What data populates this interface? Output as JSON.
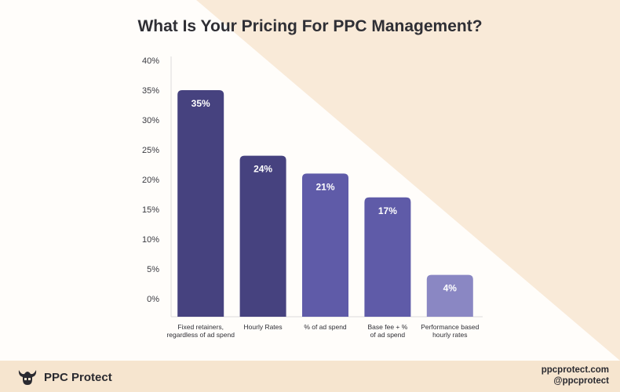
{
  "chart_data": {
    "type": "bar",
    "title": "What Is Your Pricing For PPC Management?",
    "categories": [
      [
        "Fixed retainers,",
        "regardless of ad spend"
      ],
      [
        "Hourly Rates"
      ],
      [
        "% of ad spend"
      ],
      [
        "Base fee + %",
        "of ad spend"
      ],
      [
        "Performance based",
        "hourly rates"
      ]
    ],
    "values": [
      35,
      24,
      21,
      17,
      4
    ],
    "value_labels": [
      "35%",
      "24%",
      "21%",
      "17%",
      "4%"
    ],
    "yticks": [
      "0%",
      "5%",
      "10%",
      "15%",
      "20%",
      "25%",
      "30%",
      "35%",
      "40%"
    ],
    "ylim": [
      0,
      40
    ],
    "xlabel": "",
    "ylabel": "",
    "grid": false,
    "bar_colors": [
      "#46427f",
      "#46427f",
      "#5f5ba8",
      "#5f5ba8",
      "#8a87c3"
    ]
  },
  "footer": {
    "brand": "PPC Protect",
    "website": "ppcprotect.com",
    "handle": "@ppcprotect"
  },
  "colors": {
    "background": "#fcf6ee",
    "accent": "#f6e5cf",
    "text": "#2f2f35",
    "logo": "#2a2a30"
  }
}
